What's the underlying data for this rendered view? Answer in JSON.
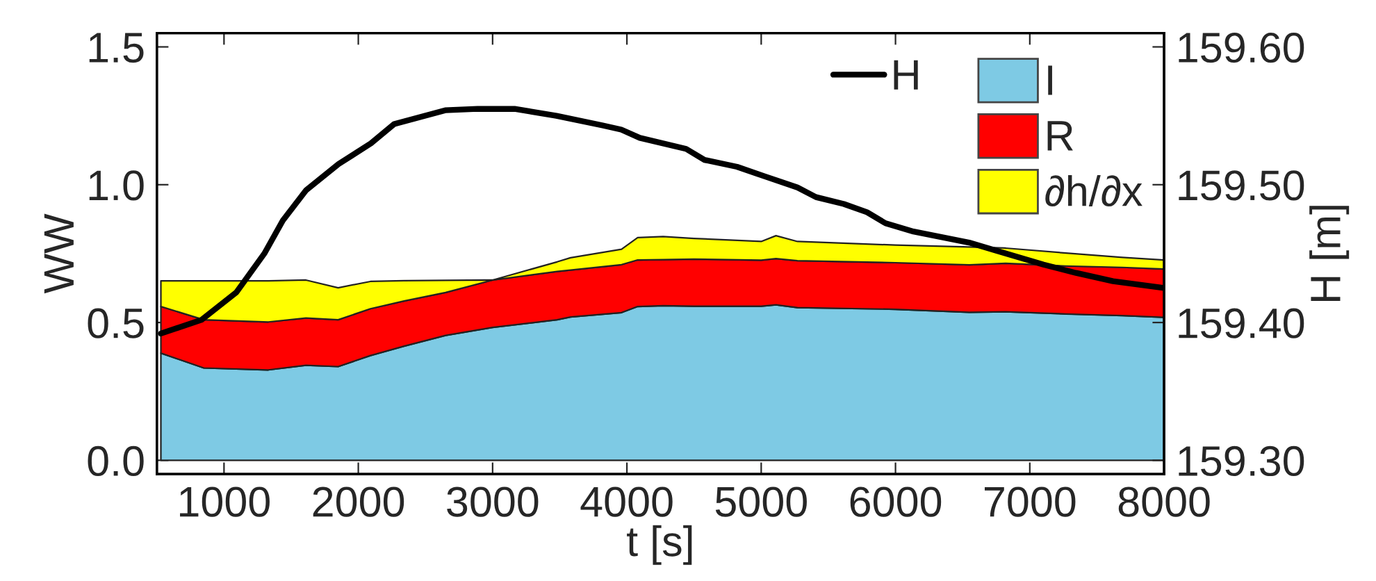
{
  "chart_data": {
    "type": "area",
    "stacked": true,
    "xlabel": "t [s]",
    "ylabel": "WW",
    "y2label": "H [m]",
    "x": [
      530,
      850,
      1330,
      1610,
      1850,
      2090,
      2340,
      2650,
      3000,
      3480,
      3580,
      3960,
      4080,
      4270,
      4500,
      5000,
      5110,
      5270,
      6000,
      6550,
      6820,
      7270,
      7690,
      8000
    ],
    "series": [
      {
        "name": "I",
        "color": "#7ecae4",
        "values": [
          0.389,
          0.335,
          0.328,
          0.345,
          0.34,
          0.38,
          0.414,
          0.453,
          0.482,
          0.51,
          0.52,
          0.536,
          0.558,
          0.561,
          0.559,
          0.559,
          0.564,
          0.554,
          0.548,
          0.537,
          0.539,
          0.531,
          0.525,
          0.519
        ]
      },
      {
        "name": "R",
        "color": "#ff0000",
        "values": [
          0.169,
          0.175,
          0.174,
          0.171,
          0.17,
          0.17,
          0.164,
          0.156,
          0.172,
          0.175,
          0.17,
          0.174,
          0.169,
          0.167,
          0.171,
          0.167,
          0.168,
          0.17,
          0.169,
          0.172,
          0.176,
          0.174,
          0.175,
          0.175
        ]
      },
      {
        "name": "∂h/∂x",
        "color": "#ffff00",
        "values": [
          0.093,
          0.141,
          0.149,
          0.138,
          0.116,
          0.099,
          0.074,
          0.044,
          0.0,
          0.035,
          0.045,
          0.056,
          0.081,
          0.084,
          0.075,
          0.068,
          0.083,
          0.07,
          0.064,
          0.065,
          0.055,
          0.047,
          0.036,
          0.033
        ]
      },
      {
        "name": "H",
        "type": "line",
        "axis": "y2",
        "color": "#000000",
        "x": [
          530,
          834,
          1093,
          1300,
          1438,
          1611,
          1853,
          2094,
          2267,
          2647,
          2888,
          3164,
          3475,
          3820,
          3958,
          4096,
          4441,
          4578,
          4820,
          5028,
          5270,
          5408,
          5615,
          5788,
          5926,
          6134,
          6548,
          6756,
          7102,
          7344,
          7620,
          8000
        ],
        "values": [
          159.392,
          159.402,
          159.422,
          159.45,
          159.474,
          159.496,
          159.515,
          159.53,
          159.544,
          159.554,
          159.555,
          159.555,
          159.55,
          159.543,
          159.54,
          159.534,
          159.526,
          159.518,
          159.513,
          159.506,
          159.498,
          159.491,
          159.486,
          159.48,
          159.472,
          159.466,
          159.458,
          159.452,
          159.442,
          159.436,
          159.43,
          159.425
        ]
      }
    ],
    "xlim": [
      500,
      8000
    ],
    "xticks": [
      1000,
      2000,
      3000,
      4000,
      5000,
      6000,
      7000,
      8000
    ],
    "ylim": [
      -0.05,
      1.55
    ],
    "yticks": [
      {
        "value": 0,
        "label": "0.0"
      },
      {
        "value": 0.5,
        "label": "0.5"
      },
      {
        "value": 1,
        "label": "1.0"
      },
      {
        "value": 1.5,
        "label": "1.5"
      }
    ],
    "y2lim": [
      159.29,
      159.61
    ],
    "y2ticks": [
      {
        "value": 159.3,
        "label": "159.30"
      },
      {
        "value": 159.4,
        "label": "159.40"
      },
      {
        "value": 159.5,
        "label": "159.50"
      },
      {
        "value": 159.6,
        "label": "159.60"
      }
    ],
    "legend": "top right",
    "grid": false,
    "line_style": "solid",
    "marker": "none"
  }
}
